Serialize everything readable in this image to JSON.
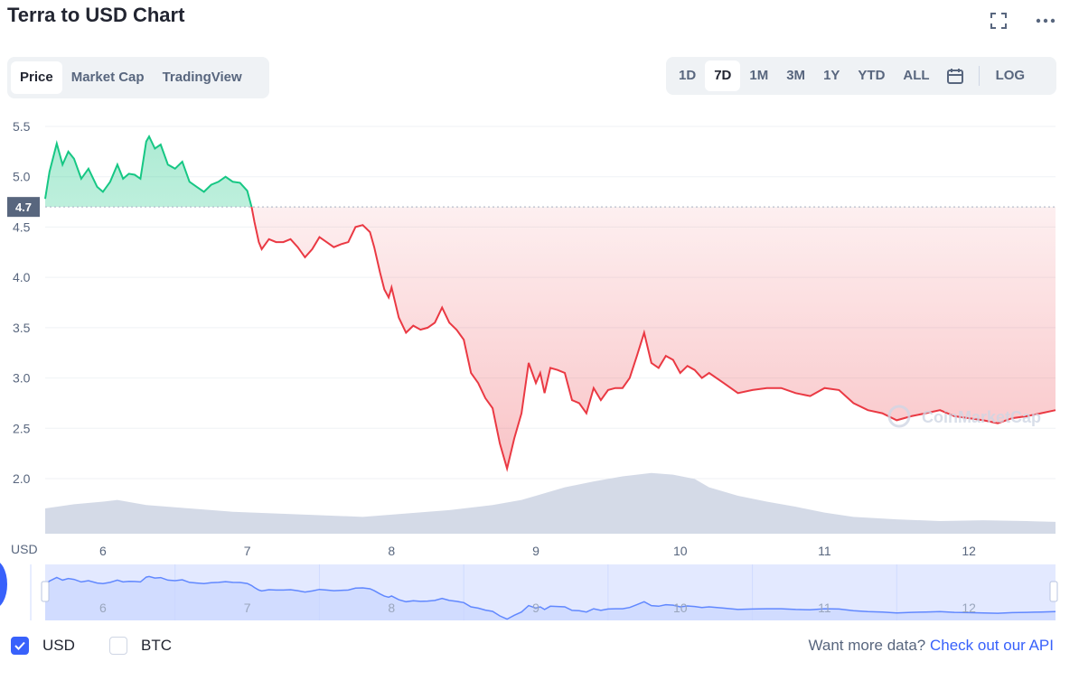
{
  "title": "Terra to USD Chart",
  "icons": {
    "fullscreen": "fullscreen-icon",
    "more": "more-dots-icon",
    "calendar": "calendar-icon"
  },
  "view_tabs": [
    {
      "label": "Price",
      "active": true
    },
    {
      "label": "Market Cap",
      "active": false
    },
    {
      "label": "TradingView",
      "active": false
    }
  ],
  "range_tabs": [
    {
      "label": "1D",
      "active": false
    },
    {
      "label": "7D",
      "active": true
    },
    {
      "label": "1M",
      "active": false
    },
    {
      "label": "3M",
      "active": false
    },
    {
      "label": "1Y",
      "active": false
    },
    {
      "label": "YTD",
      "active": false
    },
    {
      "label": "ALL",
      "active": false
    }
  ],
  "log_label": "LOG",
  "colors": {
    "up": "#16c784",
    "down": "#ea3943",
    "volume": "#cfd6e4",
    "navigator": "#6188ff",
    "accent": "#3861fb"
  },
  "chart_data": {
    "type": "area",
    "ylim": [
      1.5,
      5.6
    ],
    "yticks": [
      "5.5",
      "5.0",
      "4.5",
      "4.0",
      "3.5",
      "3.0",
      "2.5",
      "2.0"
    ],
    "ytick_values": [
      5.5,
      5.0,
      4.5,
      4.0,
      3.5,
      3.0,
      2.5,
      2.0
    ],
    "reference_price": 4.7,
    "reference_label": "4.7",
    "y_unit_label": "USD",
    "xticks": [
      "6",
      "7",
      "8",
      "9",
      "10",
      "11",
      "12"
    ],
    "xtick_values": [
      6,
      7,
      8,
      9,
      10,
      11,
      12
    ],
    "xlim": [
      5.6,
      12.6
    ],
    "grid": true,
    "watermark": "CoinMarketCap",
    "price_series": {
      "x": [
        5.6,
        5.63,
        5.68,
        5.72,
        5.76,
        5.8,
        5.85,
        5.9,
        5.96,
        6.0,
        6.05,
        6.1,
        6.14,
        6.18,
        6.22,
        6.26,
        6.3,
        6.32,
        6.36,
        6.4,
        6.45,
        6.5,
        6.55,
        6.6,
        6.65,
        6.7,
        6.75,
        6.8,
        6.85,
        6.9,
        6.95,
        7.0,
        7.03,
        7.05,
        7.08,
        7.1,
        7.15,
        7.2,
        7.25,
        7.3,
        7.35,
        7.4,
        7.45,
        7.5,
        7.55,
        7.6,
        7.65,
        7.7,
        7.75,
        7.8,
        7.85,
        7.88,
        7.92,
        7.95,
        7.98,
        8.0,
        8.05,
        8.1,
        8.15,
        8.2,
        8.25,
        8.3,
        8.35,
        8.4,
        8.45,
        8.5,
        8.55,
        8.6,
        8.65,
        8.7,
        8.75,
        8.8,
        8.85,
        8.9,
        8.95,
        9.0,
        9.03,
        9.06,
        9.1,
        9.15,
        9.2,
        9.25,
        9.3,
        9.35,
        9.4,
        9.45,
        9.5,
        9.55,
        9.6,
        9.65,
        9.7,
        9.75,
        9.8,
        9.85,
        9.9,
        9.95,
        10.0,
        10.05,
        10.1,
        10.15,
        10.2,
        10.3,
        10.4,
        10.5,
        10.6,
        10.7,
        10.8,
        10.9,
        11.0,
        11.1,
        11.2,
        11.3,
        11.4,
        11.5,
        11.6,
        11.7,
        11.8,
        11.9,
        12.0,
        12.1,
        12.2,
        12.3,
        12.4,
        12.5,
        12.6
      ],
      "y": [
        4.78,
        5.05,
        5.33,
        5.12,
        5.25,
        5.18,
        4.98,
        5.08,
        4.9,
        4.85,
        4.95,
        5.12,
        4.98,
        5.03,
        5.02,
        4.98,
        5.35,
        5.4,
        5.28,
        5.32,
        5.12,
        5.08,
        5.15,
        4.95,
        4.9,
        4.85,
        4.92,
        4.95,
        5.0,
        4.95,
        4.94,
        4.86,
        4.7,
        4.55,
        4.35,
        4.28,
        4.38,
        4.35,
        4.35,
        4.38,
        4.3,
        4.2,
        4.28,
        4.4,
        4.35,
        4.3,
        4.33,
        4.35,
        4.5,
        4.52,
        4.45,
        4.3,
        4.05,
        3.88,
        3.8,
        3.9,
        3.6,
        3.45,
        3.52,
        3.48,
        3.5,
        3.55,
        3.7,
        3.55,
        3.48,
        3.38,
        3.05,
        2.95,
        2.8,
        2.7,
        2.35,
        2.1,
        2.4,
        2.65,
        3.15,
        2.95,
        3.05,
        2.85,
        3.1,
        3.08,
        3.05,
        2.78,
        2.75,
        2.65,
        2.9,
        2.78,
        2.88,
        2.9,
        2.9,
        3.0,
        3.22,
        3.45,
        3.15,
        3.1,
        3.22,
        3.18,
        3.05,
        3.12,
        3.08,
        3.0,
        3.05,
        2.95,
        2.85,
        2.88,
        2.9,
        2.9,
        2.85,
        2.82,
        2.9,
        2.88,
        2.75,
        2.68,
        2.65,
        2.58,
        2.62,
        2.65,
        2.68,
        2.62,
        2.6,
        2.58,
        2.55,
        2.6,
        2.62,
        2.65,
        2.68
      ]
    },
    "volume_series": {
      "x": [
        5.6,
        5.8,
        6.0,
        6.1,
        6.3,
        6.6,
        6.9,
        7.2,
        7.5,
        7.8,
        8.1,
        8.4,
        8.7,
        8.9,
        9.0,
        9.2,
        9.4,
        9.6,
        9.8,
        9.95,
        10.1,
        10.2,
        10.4,
        10.6,
        10.8,
        11.0,
        11.2,
        11.5,
        11.8,
        12.1,
        12.4,
        12.6
      ],
      "y": [
        0.3,
        0.35,
        0.38,
        0.4,
        0.34,
        0.3,
        0.26,
        0.24,
        0.22,
        0.2,
        0.24,
        0.28,
        0.34,
        0.4,
        0.45,
        0.55,
        0.62,
        0.68,
        0.72,
        0.7,
        0.65,
        0.55,
        0.45,
        0.38,
        0.32,
        0.25,
        0.2,
        0.17,
        0.15,
        0.16,
        0.15,
        0.14
      ]
    }
  },
  "legend": [
    {
      "label": "USD",
      "checked": true
    },
    {
      "label": "BTC",
      "checked": false
    }
  ],
  "footer": {
    "prefix": "Want more data? ",
    "link": "Check out our API"
  }
}
